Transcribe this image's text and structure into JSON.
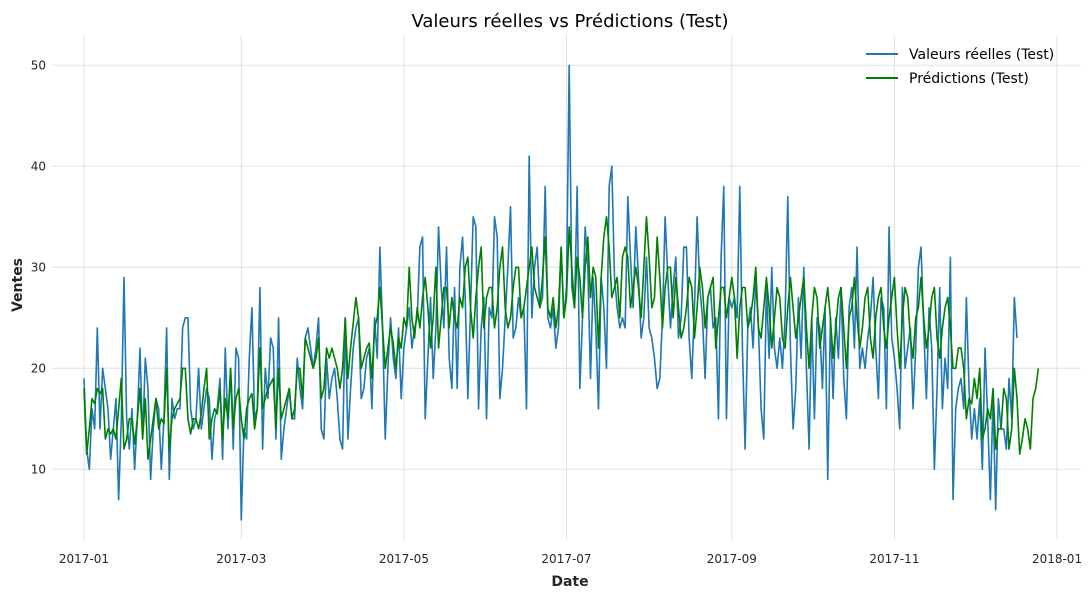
{
  "chart_data": {
    "type": "line",
    "title": "Valeurs réelles vs Prédictions (Test)",
    "xlabel": "Date",
    "ylabel": "Ventes",
    "xlim": [
      "2016-12-20",
      "2018-01-10"
    ],
    "ylim": [
      3,
      53
    ],
    "grid": true,
    "legend_position": "top-right",
    "x_ticks": [
      "2017-01",
      "2017-03",
      "2017-05",
      "2017-07",
      "2017-09",
      "2017-11",
      "2018-01"
    ],
    "x_tick_dates": [
      "2017-01-01",
      "2017-03-01",
      "2017-05-01",
      "2017-07-01",
      "2017-09-01",
      "2017-11-01",
      "2018-01-01"
    ],
    "y_ticks": [
      10,
      20,
      30,
      40,
      50
    ],
    "x_start": "2017-01-01",
    "x_step": "1 day",
    "series": [
      {
        "name": "Valeurs réelles (Test)",
        "color": "#1f77b4",
        "values": [
          19,
          12,
          10,
          16,
          14,
          24,
          14,
          20,
          18,
          16,
          11,
          14,
          17,
          7,
          15,
          29,
          15,
          12,
          16,
          10,
          15,
          22,
          13,
          21,
          18,
          9,
          14,
          17,
          16,
          10,
          15,
          24,
          9,
          17,
          15,
          16,
          16,
          24,
          25,
          25,
          16,
          14,
          15,
          20,
          14,
          16,
          18,
          17,
          11,
          15,
          16,
          19,
          11,
          22,
          14,
          20,
          12,
          22,
          21,
          5,
          14,
          13,
          21,
          26,
          15,
          16,
          28,
          12,
          20,
          17,
          23,
          22,
          13,
          25,
          11,
          14,
          16,
          18,
          15,
          15,
          21,
          18,
          16,
          23,
          24,
          22,
          20,
          22,
          25,
          14,
          13,
          21,
          17,
          19,
          20,
          17,
          13,
          12,
          25,
          13,
          18,
          22,
          24,
          25,
          17,
          18,
          21,
          22,
          16,
          25,
          21,
          32,
          24,
          13,
          20,
          25,
          21,
          19,
          24,
          17,
          22,
          24,
          26,
          22,
          24,
          25,
          32,
          33,
          15,
          21,
          27,
          19,
          24,
          34,
          28,
          24,
          32,
          21,
          18,
          28,
          18,
          30,
          33,
          27,
          17,
          26,
          35,
          34,
          16,
          24,
          27,
          15,
          26,
          25,
          35,
          33,
          17,
          20,
          25,
          30,
          36,
          23,
          24,
          27,
          25,
          26,
          16,
          41,
          25,
          30,
          32,
          26,
          27,
          38,
          25,
          24,
          26,
          22,
          24,
          32,
          25,
          28,
          50,
          28,
          26,
          38,
          18,
          25,
          34,
          30,
          19,
          29,
          24,
          16,
          29,
          26,
          20,
          38,
          40,
          29,
          26,
          24,
          25,
          24,
          37,
          31,
          26,
          34,
          29,
          23,
          25,
          31,
          24,
          23,
          21,
          18,
          19,
          25,
          35,
          29,
          24,
          28,
          31,
          23,
          25,
          32,
          32,
          23,
          19,
          26,
          35,
          28,
          25,
          19,
          27,
          28,
          24,
          25,
          15,
          31,
          38,
          15,
          27,
          26,
          27,
          25,
          38,
          22,
          12,
          24,
          26,
          22,
          29,
          24,
          16,
          13,
          28,
          21,
          30,
          22,
          20,
          23,
          20,
          25,
          37,
          22,
          14,
          18,
          27,
          21,
          30,
          20,
          12,
          25,
          15,
          25,
          24,
          18,
          26,
          9,
          25,
          17,
          25,
          21,
          28,
          19,
          15,
          26,
          28,
          22,
          32,
          20,
          22,
          20,
          23,
          25,
          29,
          22,
          17,
          27,
          26,
          16,
          34,
          23,
          21,
          18,
          14,
          28,
          20,
          22,
          24,
          16,
          22,
          30,
          32,
          24,
          17,
          26,
          22,
          10,
          18,
          28,
          16,
          21,
          18,
          31,
          7,
          16,
          18,
          19,
          16,
          27,
          18,
          13,
          16,
          13,
          17,
          10,
          22,
          15,
          7,
          17,
          6,
          17,
          14,
          14,
          12,
          19,
          15,
          27,
          23
        ]
      },
      {
        "name": "Prédictions (Test)",
        "color": "#008000",
        "values": [
          18,
          11.5,
          14,
          17,
          16.5,
          18,
          17.5,
          18,
          13,
          14,
          13.5,
          14,
          13,
          16,
          19,
          12,
          13,
          15,
          15,
          12.5,
          15,
          18,
          13,
          17,
          11,
          13,
          15,
          17,
          14,
          15,
          14.5,
          20,
          12,
          15,
          16,
          16.5,
          17,
          20,
          20,
          15,
          13.5,
          15,
          15,
          14,
          15.5,
          18,
          20,
          13,
          15,
          16,
          15.5,
          18,
          13,
          17,
          15,
          20,
          14,
          17,
          18,
          15,
          13,
          16,
          17,
          17.5,
          14,
          16,
          22,
          16,
          17,
          18,
          18.5,
          19,
          14,
          20,
          15,
          16,
          17,
          18,
          15,
          16,
          20,
          20,
          17,
          23,
          22,
          21,
          20,
          21,
          23,
          17,
          18,
          22,
          21,
          22,
          21,
          20,
          18,
          20,
          25,
          19,
          22,
          24.5,
          27,
          25,
          20,
          21,
          22,
          22.5,
          19,
          24,
          25,
          28,
          24,
          20,
          22,
          24,
          22.5,
          20,
          23,
          22,
          25,
          24,
          30,
          25,
          23,
          26,
          24,
          27,
          29,
          26,
          22,
          25,
          30,
          22,
          25,
          28,
          28,
          24,
          27,
          25,
          24,
          27,
          26,
          30,
          31,
          26,
          23,
          27,
          30,
          32,
          24,
          27,
          28,
          28,
          24,
          26,
          30,
          32,
          26,
          24,
          25,
          28,
          30,
          30,
          25,
          26,
          28,
          30,
          32,
          28,
          27,
          26,
          29,
          33,
          26,
          25,
          27,
          24,
          26,
          32,
          25,
          27,
          34,
          30,
          26,
          31,
          29,
          25,
          30,
          33,
          27,
          30,
          29,
          22,
          29,
          33,
          35,
          32,
          27,
          28,
          29,
          25,
          31,
          32,
          31,
          26,
          28,
          30,
          28,
          25,
          30,
          35,
          31,
          26,
          27,
          33,
          29,
          24,
          28,
          30,
          30,
          25,
          29,
          26,
          23,
          24,
          26,
          29,
          28,
          23,
          26,
          30,
          28,
          24,
          27,
          28,
          29,
          22,
          25,
          28,
          28,
          25,
          27,
          29,
          27,
          21,
          26,
          28,
          28,
          24,
          25,
          27,
          30,
          24,
          23,
          26,
          29,
          26,
          22,
          25,
          28,
          27,
          23,
          22,
          26,
          29,
          26,
          23,
          25,
          27,
          29,
          24,
          20,
          25,
          28,
          27,
          22,
          24,
          26,
          28,
          25,
          21,
          24,
          27,
          28,
          24,
          20,
          25,
          26,
          29,
          25,
          22,
          24,
          27,
          28,
          23,
          21,
          25,
          27,
          28,
          24,
          22,
          25,
          27,
          29,
          24,
          20,
          25,
          28,
          27,
          23,
          21,
          25,
          26,
          29,
          25,
          22,
          24,
          27,
          28,
          23,
          21,
          24,
          26,
          27,
          24,
          20,
          20,
          22,
          22,
          20,
          15,
          17,
          16.5,
          19,
          17,
          20,
          13,
          14,
          16,
          15,
          18,
          12,
          14,
          14,
          18,
          17,
          12,
          14,
          20,
          17,
          11.5,
          13,
          15,
          14,
          12,
          17,
          18,
          20
        ]
      }
    ]
  }
}
